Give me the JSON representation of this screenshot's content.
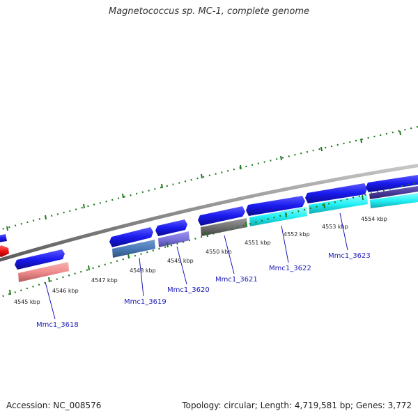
{
  "title": "Magnetococcus sp. MC-1, complete genome",
  "footer": {
    "accession": "Accession: NC_008576",
    "summary": "Topology: circular; Length: 4,719,581 bp; Genes: 3,772"
  },
  "colors": {
    "backbone": "#8c8c8c",
    "tick": "#1f7a1f",
    "forward_gene": "#1a1aee",
    "red_gene": "#ee1111",
    "label_line": "#1a1ab5"
  },
  "kbp_labels": [
    "4545 kbp",
    "4546 kbp",
    "4547 kbp",
    "4548 kbp",
    "4549 kbp",
    "4550 kbp",
    "4551 kbp",
    "4552 kbp",
    "4553 kbp",
    "4554 kbp"
  ],
  "gene_labels": [
    "Mmc1_3618",
    "Mmc1_3619",
    "Mmc1_3620",
    "Mmc1_3621",
    "Mmc1_3622",
    "Mmc1_3623"
  ]
}
